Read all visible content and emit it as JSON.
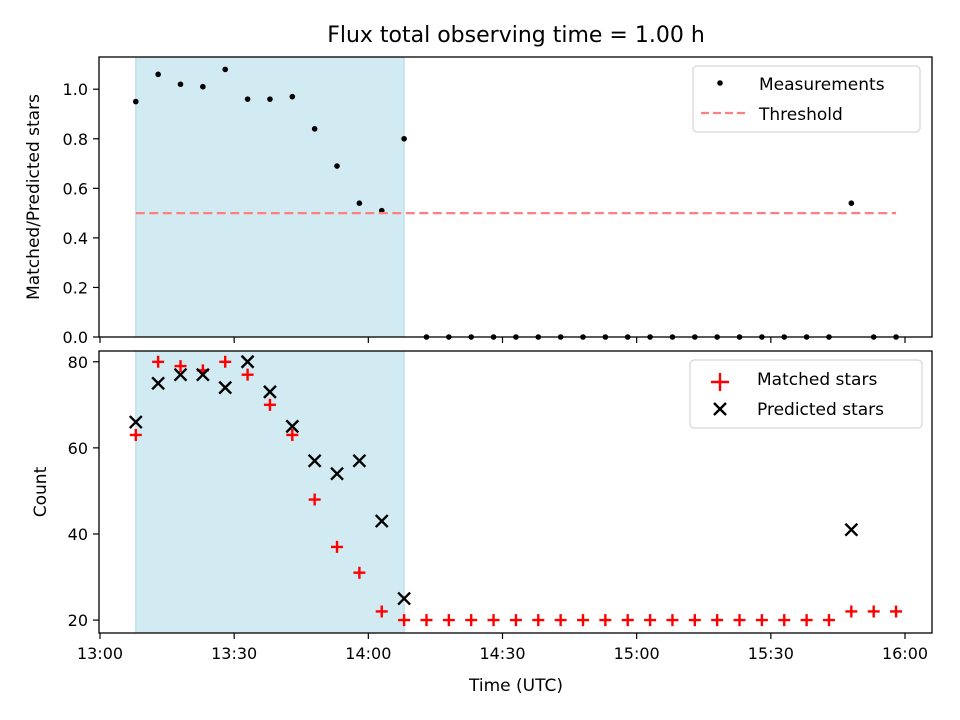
{
  "chart_data": [
    {
      "type": "scatter",
      "title": "Flux total observing time = 1.00 h",
      "xlabel": "",
      "ylabel": "Matched/Predicted stars",
      "ylim": [
        0,
        1.13
      ],
      "yticks": [
        "0.0",
        "0.2",
        "0.4",
        "0.6",
        "0.8",
        "1.0"
      ],
      "xlim": [
        "13:00",
        "16:00"
      ],
      "shaded_interval": [
        "13:08",
        "14:08"
      ],
      "shade_color": "#add8e6",
      "legend": {
        "placement": "top-right"
      },
      "series": [
        {
          "name": "Measurements",
          "marker": "dot",
          "color": "#000000",
          "x": [
            "13:08",
            "13:13",
            "13:18",
            "13:23",
            "13:28",
            "13:33",
            "13:38",
            "13:43",
            "13:48",
            "13:53",
            "13:58",
            "14:03",
            "14:08",
            "14:13",
            "14:18",
            "14:23",
            "14:28",
            "14:33",
            "14:38",
            "14:43",
            "14:48",
            "14:53",
            "14:58",
            "15:03",
            "15:08",
            "15:13",
            "15:18",
            "15:23",
            "15:28",
            "15:33",
            "15:38",
            "15:43",
            "15:48",
            "15:53",
            "15:58"
          ],
          "values": [
            0.95,
            1.06,
            1.02,
            1.01,
            1.08,
            0.96,
            0.96,
            0.97,
            0.84,
            0.69,
            0.54,
            0.51,
            0.8,
            0,
            0,
            0,
            0,
            0,
            0,
            0,
            0,
            0,
            0,
            0,
            0,
            0,
            0,
            0,
            0,
            0,
            0,
            0,
            0.54,
            0,
            0
          ]
        },
        {
          "name": "Threshold",
          "style": "dashed-line",
          "color": "#ff7f7f",
          "x": [
            "13:08",
            "15:58"
          ],
          "values": [
            0.5,
            0.5
          ]
        }
      ]
    },
    {
      "type": "scatter",
      "title": "",
      "xlabel": "Time (UTC)",
      "ylabel": "Count",
      "ylim": [
        17,
        82.5
      ],
      "yticks": [
        "20",
        "40",
        "60",
        "80"
      ],
      "xticks": [
        "13:00",
        "13:30",
        "14:00",
        "14:30",
        "15:00",
        "15:30",
        "16:00"
      ],
      "xlim": [
        "13:00",
        "16:00"
      ],
      "shaded_interval": [
        "13:08",
        "14:08"
      ],
      "shade_color": "#add8e6",
      "legend": {
        "placement": "top-right"
      },
      "series": [
        {
          "name": "Matched stars",
          "marker": "plus",
          "color": "#ff0000",
          "x": [
            "13:08",
            "13:13",
            "13:18",
            "13:23",
            "13:28",
            "13:33",
            "13:38",
            "13:43",
            "13:48",
            "13:53",
            "13:58",
            "14:03",
            "14:08",
            "14:13",
            "14:18",
            "14:23",
            "14:28",
            "14:33",
            "14:38",
            "14:43",
            "14:48",
            "14:53",
            "14:58",
            "15:03",
            "15:08",
            "15:13",
            "15:18",
            "15:23",
            "15:28",
            "15:33",
            "15:38",
            "15:43",
            "15:48",
            "15:53",
            "15:58"
          ],
          "values": [
            63,
            80,
            79,
            78,
            80,
            77,
            70,
            63,
            48,
            37,
            31,
            22,
            20,
            20,
            20,
            20,
            20,
            20,
            20,
            20,
            20,
            20,
            20,
            20,
            20,
            20,
            20,
            20,
            20,
            20,
            20,
            20,
            22,
            22,
            22
          ]
        },
        {
          "name": "Predicted stars",
          "marker": "x",
          "color": "#000000",
          "x": [
            "13:08",
            "13:13",
            "13:18",
            "13:23",
            "13:28",
            "13:33",
            "13:38",
            "13:43",
            "13:48",
            "13:53",
            "13:58",
            "14:03",
            "14:08",
            "15:48"
          ],
          "values": [
            66,
            75,
            77,
            77,
            74,
            80,
            73,
            65,
            57,
            54,
            57,
            43,
            25,
            41
          ]
        }
      ]
    }
  ]
}
